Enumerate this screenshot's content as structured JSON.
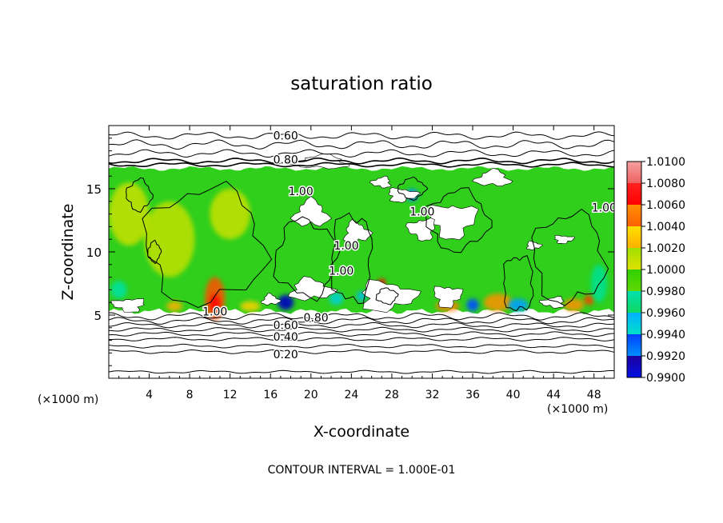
{
  "chart_data": {
    "type": "heatmap",
    "title": "saturation ratio",
    "xlabel": "X-coordinate",
    "ylabel": "Z-coordinate",
    "x_unit_left": "(×1000 m)",
    "x_unit_right": "(×1000 m)",
    "xlim": [
      0,
      50
    ],
    "ylim": [
      0,
      20
    ],
    "x_ticks": [
      4,
      8,
      12,
      16,
      20,
      24,
      28,
      32,
      36,
      40,
      44,
      48
    ],
    "y_ticks": [
      5,
      10,
      15
    ],
    "colorbar": {
      "min": 0.99,
      "max": 1.01,
      "labels": [
        "1.0100",
        "1.0080",
        "1.0060",
        "1.0040",
        "1.0020",
        "1.0000",
        "0.9980",
        "0.9960",
        "0.9940",
        "0.9920",
        "0.9900"
      ],
      "colors": [
        "#f08888",
        "#ff0000",
        "#ff8000",
        "#ffd000",
        "#c8e000",
        "#30d000",
        "#00e090",
        "#00c8e0",
        "#0070ff",
        "#0000c0",
        "#600090"
      ]
    },
    "contour_labels": [
      {
        "text": "0.60",
        "x": 17.5,
        "y": 19.2
      },
      {
        "text": "0.80",
        "x": 17.5,
        "y": 17.3
      },
      {
        "text": "1.00",
        "x": 19.0,
        "y": 14.8
      },
      {
        "text": "1.00",
        "x": 31.0,
        "y": 13.2
      },
      {
        "text": "1.00",
        "x": 49.0,
        "y": 13.5
      },
      {
        "text": "1.00",
        "x": 23.5,
        "y": 10.5
      },
      {
        "text": "1.00",
        "x": 23.0,
        "y": 8.5
      },
      {
        "text": "1.00",
        "x": 10.5,
        "y": 5.3
      },
      {
        "text": "0.80",
        "x": 20.5,
        "y": 4.8
      },
      {
        "text": "0.60",
        "x": 17.5,
        "y": 4.2
      },
      {
        "text": "0.40",
        "x": 17.5,
        "y": 3.3
      },
      {
        "text": "0.20",
        "x": 17.5,
        "y": 1.9
      }
    ],
    "contour_levels": [
      {
        "z": 0.5,
        "amp": 0.08
      },
      {
        "z": 2.1,
        "amp": 0.1
      },
      {
        "z": 2.55,
        "amp": 0.1
      },
      {
        "z": 3.1,
        "amp": 0.1
      },
      {
        "z": 3.5,
        "amp": 0.12
      },
      {
        "z": 3.85,
        "amp": 0.12
      },
      {
        "z": 4.2,
        "amp": 0.14
      },
      {
        "z": 4.55,
        "amp": 0.18
      },
      {
        "z": 4.9,
        "amp": 0.2
      },
      {
        "z": 16.9,
        "amp": 0.12
      },
      {
        "z": 17.2,
        "amp": 0.15
      },
      {
        "z": 17.8,
        "amp": 0.2
      },
      {
        "z": 18.5,
        "amp": 0.25
      },
      {
        "z": 19.2,
        "amp": 0.2
      }
    ],
    "moist_layer": {
      "z_min": 5.3,
      "z_max": 16.6
    },
    "dry_patches": [
      {
        "x": 20.0,
        "y": 13.0,
        "rx": 1.6,
        "ry": 1.0
      },
      {
        "x": 24.5,
        "y": 11.5,
        "rx": 1.2,
        "ry": 0.8
      },
      {
        "x": 29.0,
        "y": 14.5,
        "rx": 1.4,
        "ry": 0.5
      },
      {
        "x": 34.0,
        "y": 12.5,
        "rx": 2.2,
        "ry": 1.3
      },
      {
        "x": 31.0,
        "y": 11.8,
        "rx": 1.3,
        "ry": 0.8
      },
      {
        "x": 27.0,
        "y": 15.5,
        "rx": 0.9,
        "ry": 0.4
      },
      {
        "x": 38.0,
        "y": 15.8,
        "rx": 1.6,
        "ry": 0.6
      },
      {
        "x": 20.0,
        "y": 7.0,
        "rx": 2.0,
        "ry": 0.8
      },
      {
        "x": 27.5,
        "y": 6.5,
        "rx": 2.6,
        "ry": 1.1
      },
      {
        "x": 33.5,
        "y": 6.5,
        "rx": 1.3,
        "ry": 0.8
      },
      {
        "x": 2.0,
        "y": 5.8,
        "rx": 1.5,
        "ry": 0.5
      },
      {
        "x": 44.0,
        "y": 6.0,
        "rx": 1.1,
        "ry": 0.4
      },
      {
        "x": 21.0,
        "y": 17.1,
        "rx": 2.5,
        "ry": 0.5
      },
      {
        "x": 16.0,
        "y": 6.2,
        "rx": 0.8,
        "ry": 0.4
      },
      {
        "x": 42.0,
        "y": 10.5,
        "rx": 0.7,
        "ry": 0.3
      },
      {
        "x": 45.0,
        "y": 11.0,
        "rx": 0.9,
        "ry": 0.3
      }
    ],
    "hot_spots": [
      {
        "x": 10.5,
        "y": 6.3,
        "rx": 1.0,
        "ry": 1.7,
        "color": "#ff5000"
      },
      {
        "x": 10.5,
        "y": 5.9,
        "rx": 0.6,
        "ry": 0.8,
        "color": "#ff0000"
      },
      {
        "x": 6.5,
        "y": 5.7,
        "rx": 0.8,
        "ry": 0.4,
        "color": "#ffb000"
      },
      {
        "x": 14.0,
        "y": 5.7,
        "rx": 1.0,
        "ry": 0.4,
        "color": "#ffd000"
      },
      {
        "x": 33.5,
        "y": 5.7,
        "rx": 1.2,
        "ry": 0.4,
        "color": "#ff8000"
      },
      {
        "x": 38.5,
        "y": 6.0,
        "rx": 1.4,
        "ry": 0.7,
        "color": "#ff9000"
      },
      {
        "x": 46.0,
        "y": 5.8,
        "rx": 1.0,
        "ry": 0.5,
        "color": "#ff9000"
      },
      {
        "x": 47.5,
        "y": 6.2,
        "rx": 0.5,
        "ry": 0.4,
        "color": "#ff4000"
      },
      {
        "x": 27.0,
        "y": 7.5,
        "rx": 0.4,
        "ry": 0.4,
        "color": "#ff0000"
      },
      {
        "x": 2.0,
        "y": 13.0,
        "rx": 2.0,
        "ry": 2.5,
        "color": "#c8e000"
      },
      {
        "x": 6.0,
        "y": 11.0,
        "rx": 2.5,
        "ry": 3.0,
        "color": "#c0e000"
      },
      {
        "x": 12.0,
        "y": 13.0,
        "rx": 2.0,
        "ry": 2.0,
        "color": "#c8e000"
      }
    ],
    "cold_spots": [
      {
        "x": 17.5,
        "y": 6.0,
        "rx": 0.8,
        "ry": 0.6,
        "color": "#0000c0"
      },
      {
        "x": 36.0,
        "y": 5.8,
        "rx": 0.6,
        "ry": 0.5,
        "color": "#0050ff"
      },
      {
        "x": 40.5,
        "y": 5.8,
        "rx": 1.0,
        "ry": 0.5,
        "color": "#00a0ff"
      },
      {
        "x": 22.5,
        "y": 6.3,
        "rx": 0.7,
        "ry": 0.5,
        "color": "#00d0d0"
      },
      {
        "x": 30.0,
        "y": 14.5,
        "rx": 0.6,
        "ry": 0.5,
        "color": "#0090ff"
      },
      {
        "x": 25.0,
        "y": 6.5,
        "rx": 0.5,
        "ry": 0.4,
        "color": "#00c0e0"
      },
      {
        "x": 1.0,
        "y": 7.0,
        "rx": 0.8,
        "ry": 0.7,
        "color": "#00e0a0"
      },
      {
        "x": 48.5,
        "y": 7.5,
        "rx": 0.8,
        "ry": 1.5,
        "color": "#00e090"
      }
    ],
    "annotation": "CONTOUR INTERVAL = 1.000E-01",
    "grid": false,
    "legend_position": "right colorbar"
  }
}
